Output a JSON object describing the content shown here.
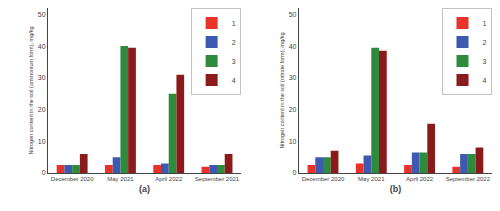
{
  "chart_data": [
    {
      "type": "bar",
      "xlabel": "(a)",
      "ylabel": "Nitrogen content in the soil (ammonium form), mg/kg",
      "categories": [
        "December 2020",
        "May 2021",
        "April 2022",
        "September 2021"
      ],
      "series": [
        {
          "name": "1",
          "color": "#e8322a",
          "values": [
            2.5,
            2.5,
            2.5,
            2.0
          ]
        },
        {
          "name": "2",
          "color": "#3d5ab0",
          "values": [
            2.5,
            5.0,
            3.0,
            2.5
          ]
        },
        {
          "name": "3",
          "color": "#2e8b3e",
          "values": [
            2.5,
            40.0,
            25.0,
            2.5
          ]
        },
        {
          "name": "4",
          "color": "#8b1a1a",
          "values": [
            6.0,
            39.5,
            31.0,
            6.0
          ]
        }
      ],
      "ylim": [
        0,
        52
      ],
      "yticks": [
        0,
        10,
        20,
        30,
        40,
        50
      ],
      "grid": false,
      "legend": "upper right"
    },
    {
      "type": "bar",
      "xlabel": "(b)",
      "ylabel": "Nitrogen content in the soil (nitrate form), mg/kg",
      "categories": [
        "December 2020",
        "May 2021",
        "April 2022",
        "September 2022"
      ],
      "series": [
        {
          "name": "1",
          "color": "#e8322a",
          "values": [
            2.5,
            3.0,
            2.5,
            2.0
          ]
        },
        {
          "name": "2",
          "color": "#3d5ab0",
          "values": [
            5.0,
            5.5,
            6.5,
            6.0
          ]
        },
        {
          "name": "3",
          "color": "#2e8b3e",
          "values": [
            5.0,
            39.5,
            6.5,
            6.0
          ]
        },
        {
          "name": "4",
          "color": "#8b1a1a",
          "values": [
            7.0,
            38.5,
            15.5,
            8.0
          ]
        }
      ],
      "ylim": [
        0,
        52
      ],
      "yticks": [
        0,
        10,
        20,
        30,
        40,
        50
      ],
      "grid": false,
      "legend": "upper right"
    }
  ]
}
